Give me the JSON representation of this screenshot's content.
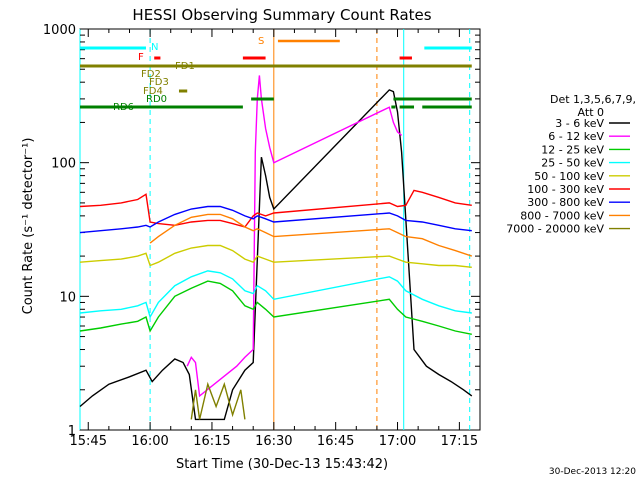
{
  "chart_data": {
    "type": "line",
    "title": "HESSI Observing Summary Count Rates",
    "xlabel": "Start Time (30-Dec-13 15:43:42)",
    "ylabel": "Count Rate (s⁻¹ detector⁻¹)",
    "y_scale": "log",
    "ylim": [
      1,
      1000
    ],
    "xlim_minutes_of_day": [
      943,
      1040
    ],
    "x_ticks": [
      {
        "t": 945,
        "label": "15:45"
      },
      {
        "t": 960,
        "label": "16:00"
      },
      {
        "t": 975,
        "label": "16:15"
      },
      {
        "t": 990,
        "label": "16:30"
      },
      {
        "t": 1005,
        "label": "16:45"
      },
      {
        "t": 1020,
        "label": "17:00"
      },
      {
        "t": 1035,
        "label": "17:15"
      }
    ],
    "y_ticks": [
      {
        "v": 1,
        "label": "1"
      },
      {
        "v": 10,
        "label": "10"
      },
      {
        "v": 100,
        "label": "100"
      },
      {
        "v": 1000,
        "label": "1000"
      }
    ],
    "legend_title": [
      "Det 1,3,5,6,7,9,",
      "Att 0"
    ],
    "series": [
      {
        "name": "3 - 6 keV",
        "color": "#000000",
        "points": [
          [
            943,
            1.5
          ],
          [
            946,
            1.8
          ],
          [
            950,
            2.2
          ],
          [
            955,
            2.5
          ],
          [
            959,
            2.8
          ],
          [
            960.5,
            2.3
          ],
          [
            963,
            2.8
          ],
          [
            966,
            3.4
          ],
          [
            968,
            3.2
          ],
          [
            969.5,
            2.6
          ],
          [
            971,
            1.2
          ],
          [
            976,
            1.2
          ],
          [
            978,
            1.2
          ],
          [
            980,
            2.0
          ],
          [
            983,
            2.8
          ],
          [
            985,
            3.2
          ],
          [
            987,
            110
          ],
          [
            988,
            80
          ],
          [
            989,
            55
          ],
          [
            990,
            45
          ],
          [
            1018,
            350
          ],
          [
            1019,
            340
          ],
          [
            1020,
            240
          ],
          [
            1021,
            120
          ],
          [
            1024,
            4.0
          ],
          [
            1027,
            3.0
          ],
          [
            1030,
            2.6
          ],
          [
            1033,
            2.3
          ],
          [
            1036,
            2.0
          ],
          [
            1038,
            1.8
          ]
        ]
      },
      {
        "name": "6 - 12 keV",
        "color": "#ff00ff",
        "points": [
          [
            969,
            3.0
          ],
          [
            970,
            3.5
          ],
          [
            971,
            3.2
          ],
          [
            972,
            1.8
          ],
          [
            981,
            3.0
          ],
          [
            983,
            3.5
          ],
          [
            985,
            4.0
          ],
          [
            985.5,
            120
          ],
          [
            986,
            300
          ],
          [
            986.5,
            450
          ],
          [
            987,
            300
          ],
          [
            988,
            180
          ],
          [
            989,
            130
          ],
          [
            990,
            100
          ],
          [
            1018,
            260
          ],
          [
            1019,
            200
          ],
          [
            1020,
            170
          ],
          [
            1021,
            160
          ]
        ]
      },
      {
        "name": "12 - 25 keV",
        "color": "#00cc00",
        "points": [
          [
            943,
            5.5
          ],
          [
            948,
            5.8
          ],
          [
            953,
            6.2
          ],
          [
            957,
            6.5
          ],
          [
            959,
            7.0
          ],
          [
            960,
            5.5
          ],
          [
            962,
            7.0
          ],
          [
            966,
            10
          ],
          [
            970,
            11.5
          ],
          [
            974,
            13.0
          ],
          [
            977,
            12.5
          ],
          [
            980,
            11.0
          ],
          [
            983,
            8.5
          ],
          [
            985,
            8.0
          ],
          [
            986,
            9.0
          ],
          [
            988,
            8.0
          ],
          [
            990,
            7.0
          ],
          [
            1018,
            9.5
          ],
          [
            1020,
            8.0
          ],
          [
            1022,
            7.0
          ],
          [
            1026,
            6.5
          ],
          [
            1030,
            6.0
          ],
          [
            1034,
            5.5
          ],
          [
            1038,
            5.2
          ]
        ]
      },
      {
        "name": "25 - 50 keV",
        "color": "#00ffff",
        "points": [
          [
            943,
            7.5
          ],
          [
            948,
            7.8
          ],
          [
            953,
            8.0
          ],
          [
            957,
            8.5
          ],
          [
            959,
            9.0
          ],
          [
            960,
            7.0
          ],
          [
            962,
            9.0
          ],
          [
            966,
            12
          ],
          [
            970,
            14
          ],
          [
            974,
            15.5
          ],
          [
            977,
            15.0
          ],
          [
            980,
            13.5
          ],
          [
            983,
            11.0
          ],
          [
            985,
            10.5
          ],
          [
            986,
            12.0
          ],
          [
            988,
            11.0
          ],
          [
            990,
            9.5
          ],
          [
            1018,
            14.0
          ],
          [
            1020,
            13.0
          ],
          [
            1022,
            11.0
          ],
          [
            1026,
            9.5
          ],
          [
            1030,
            8.5
          ],
          [
            1034,
            7.8
          ],
          [
            1038,
            7.5
          ]
        ]
      },
      {
        "name": "50 - 100 keV",
        "color": "#cccc00",
        "points": [
          [
            943,
            18
          ],
          [
            948,
            18.5
          ],
          [
            953,
            19
          ],
          [
            957,
            20
          ],
          [
            959,
            21
          ],
          [
            960,
            17
          ],
          [
            962,
            18
          ],
          [
            966,
            21
          ],
          [
            970,
            23
          ],
          [
            974,
            24
          ],
          [
            977,
            24
          ],
          [
            980,
            22
          ],
          [
            983,
            19
          ],
          [
            985,
            18
          ],
          [
            986,
            20
          ],
          [
            988,
            19
          ],
          [
            990,
            18
          ],
          [
            1018,
            20
          ],
          [
            1020,
            19
          ],
          [
            1022,
            18
          ],
          [
            1026,
            17.5
          ],
          [
            1030,
            17
          ],
          [
            1034,
            17
          ],
          [
            1038,
            16.5
          ]
        ]
      },
      {
        "name": "100 - 300 keV",
        "color": "#ff0000",
        "points": [
          [
            943,
            47
          ],
          [
            948,
            48
          ],
          [
            953,
            50
          ],
          [
            957,
            53
          ],
          [
            959,
            58
          ],
          [
            960,
            36
          ],
          [
            962,
            35
          ],
          [
            966,
            34
          ],
          [
            970,
            36
          ],
          [
            974,
            37
          ],
          [
            977,
            37
          ],
          [
            980,
            35
          ],
          [
            983,
            33
          ],
          [
            985,
            40
          ],
          [
            986,
            42
          ],
          [
            988,
            40
          ],
          [
            990,
            42
          ],
          [
            1018,
            50
          ],
          [
            1020,
            47
          ],
          [
            1022,
            48
          ],
          [
            1024,
            62
          ],
          [
            1026,
            60
          ],
          [
            1030,
            55
          ],
          [
            1034,
            50
          ],
          [
            1038,
            48
          ]
        ]
      },
      {
        "name": "300 - 800 keV",
        "color": "#0000ff",
        "points": [
          [
            943,
            30
          ],
          [
            948,
            31
          ],
          [
            953,
            32
          ],
          [
            957,
            33
          ],
          [
            959,
            34
          ],
          [
            960,
            33
          ],
          [
            962,
            36
          ],
          [
            966,
            41
          ],
          [
            970,
            45
          ],
          [
            974,
            47
          ],
          [
            977,
            47
          ],
          [
            980,
            44
          ],
          [
            983,
            40
          ],
          [
            985,
            38
          ],
          [
            986,
            40
          ],
          [
            988,
            38
          ],
          [
            990,
            36
          ],
          [
            1018,
            42
          ],
          [
            1020,
            40
          ],
          [
            1022,
            37
          ],
          [
            1026,
            36
          ],
          [
            1030,
            34
          ],
          [
            1034,
            32
          ],
          [
            1038,
            31
          ]
        ]
      },
      {
        "name": "800 - 7000 keV",
        "color": "#ff8000",
        "points": [
          [
            960,
            25
          ],
          [
            962,
            28
          ],
          [
            966,
            34
          ],
          [
            970,
            39
          ],
          [
            974,
            41
          ],
          [
            977,
            41
          ],
          [
            980,
            38
          ],
          [
            983,
            33
          ],
          [
            985,
            31
          ],
          [
            986,
            32
          ],
          [
            988,
            30
          ],
          [
            990,
            28
          ],
          [
            1018,
            32
          ],
          [
            1020,
            30
          ],
          [
            1022,
            28
          ],
          [
            1026,
            27
          ],
          [
            1030,
            24
          ],
          [
            1034,
            22
          ],
          [
            1038,
            20
          ]
        ]
      },
      {
        "name": "7000 - 20000 keV",
        "color": "#808000",
        "points": [
          [
            970,
            1.2
          ],
          [
            971,
            2.0
          ],
          [
            972,
            1.2
          ],
          [
            974,
            2.2
          ],
          [
            976,
            1.5
          ],
          [
            978,
            2.2
          ],
          [
            980,
            1.3
          ],
          [
            982,
            2.0
          ],
          [
            983,
            1.2
          ]
        ]
      }
    ]
  },
  "flags": {
    "saa": {
      "label": "S",
      "color": "#ff8000",
      "segments": [
        [
          991,
          1006
        ]
      ]
    },
    "flare": {
      "label": "F",
      "color": "#ff0000",
      "segments": [
        [
          961,
          962.5
        ],
        [
          982.5,
          988
        ],
        [
          1020.5,
          1023.5
        ]
      ]
    },
    "night": {
      "label": "N",
      "color": "#00ffff",
      "segments": [
        [
          943,
          959
        ],
        [
          1026.5,
          1038
        ]
      ]
    },
    "fd1": {
      "label": "FD1",
      "color": "#808000",
      "segments": [
        [
          943,
          1038
        ]
      ]
    },
    "fd2": {
      "label": "FD2",
      "color": "#808000",
      "segments": []
    },
    "fd3": {
      "label": "FD3",
      "color": "#808000",
      "segments": []
    },
    "fd4": {
      "label": "FD4",
      "color": "#808000",
      "segments": [
        [
          967,
          969
        ]
      ]
    },
    "rd0": {
      "label": "RD0",
      "color": "#008000",
      "segments": [
        [
          984.5,
          990
        ],
        [
          1019,
          1038
        ]
      ]
    },
    "rd6": {
      "label": "RD6",
      "color": "#008000",
      "segments": [
        [
          943,
          982.5
        ],
        [
          1018.5,
          1019.5
        ],
        [
          1020.5,
          1024
        ],
        [
          1026,
          1038
        ]
      ]
    }
  },
  "vlines": {
    "cyan_solid": [
      943,
      1021.5
    ],
    "cyan_dashed": [
      960,
      1037.5
    ],
    "orange_solid": [
      990
    ],
    "orange_dashed": [
      1015
    ]
  },
  "footer_timestamp": "30-Dec-2013 12:20"
}
